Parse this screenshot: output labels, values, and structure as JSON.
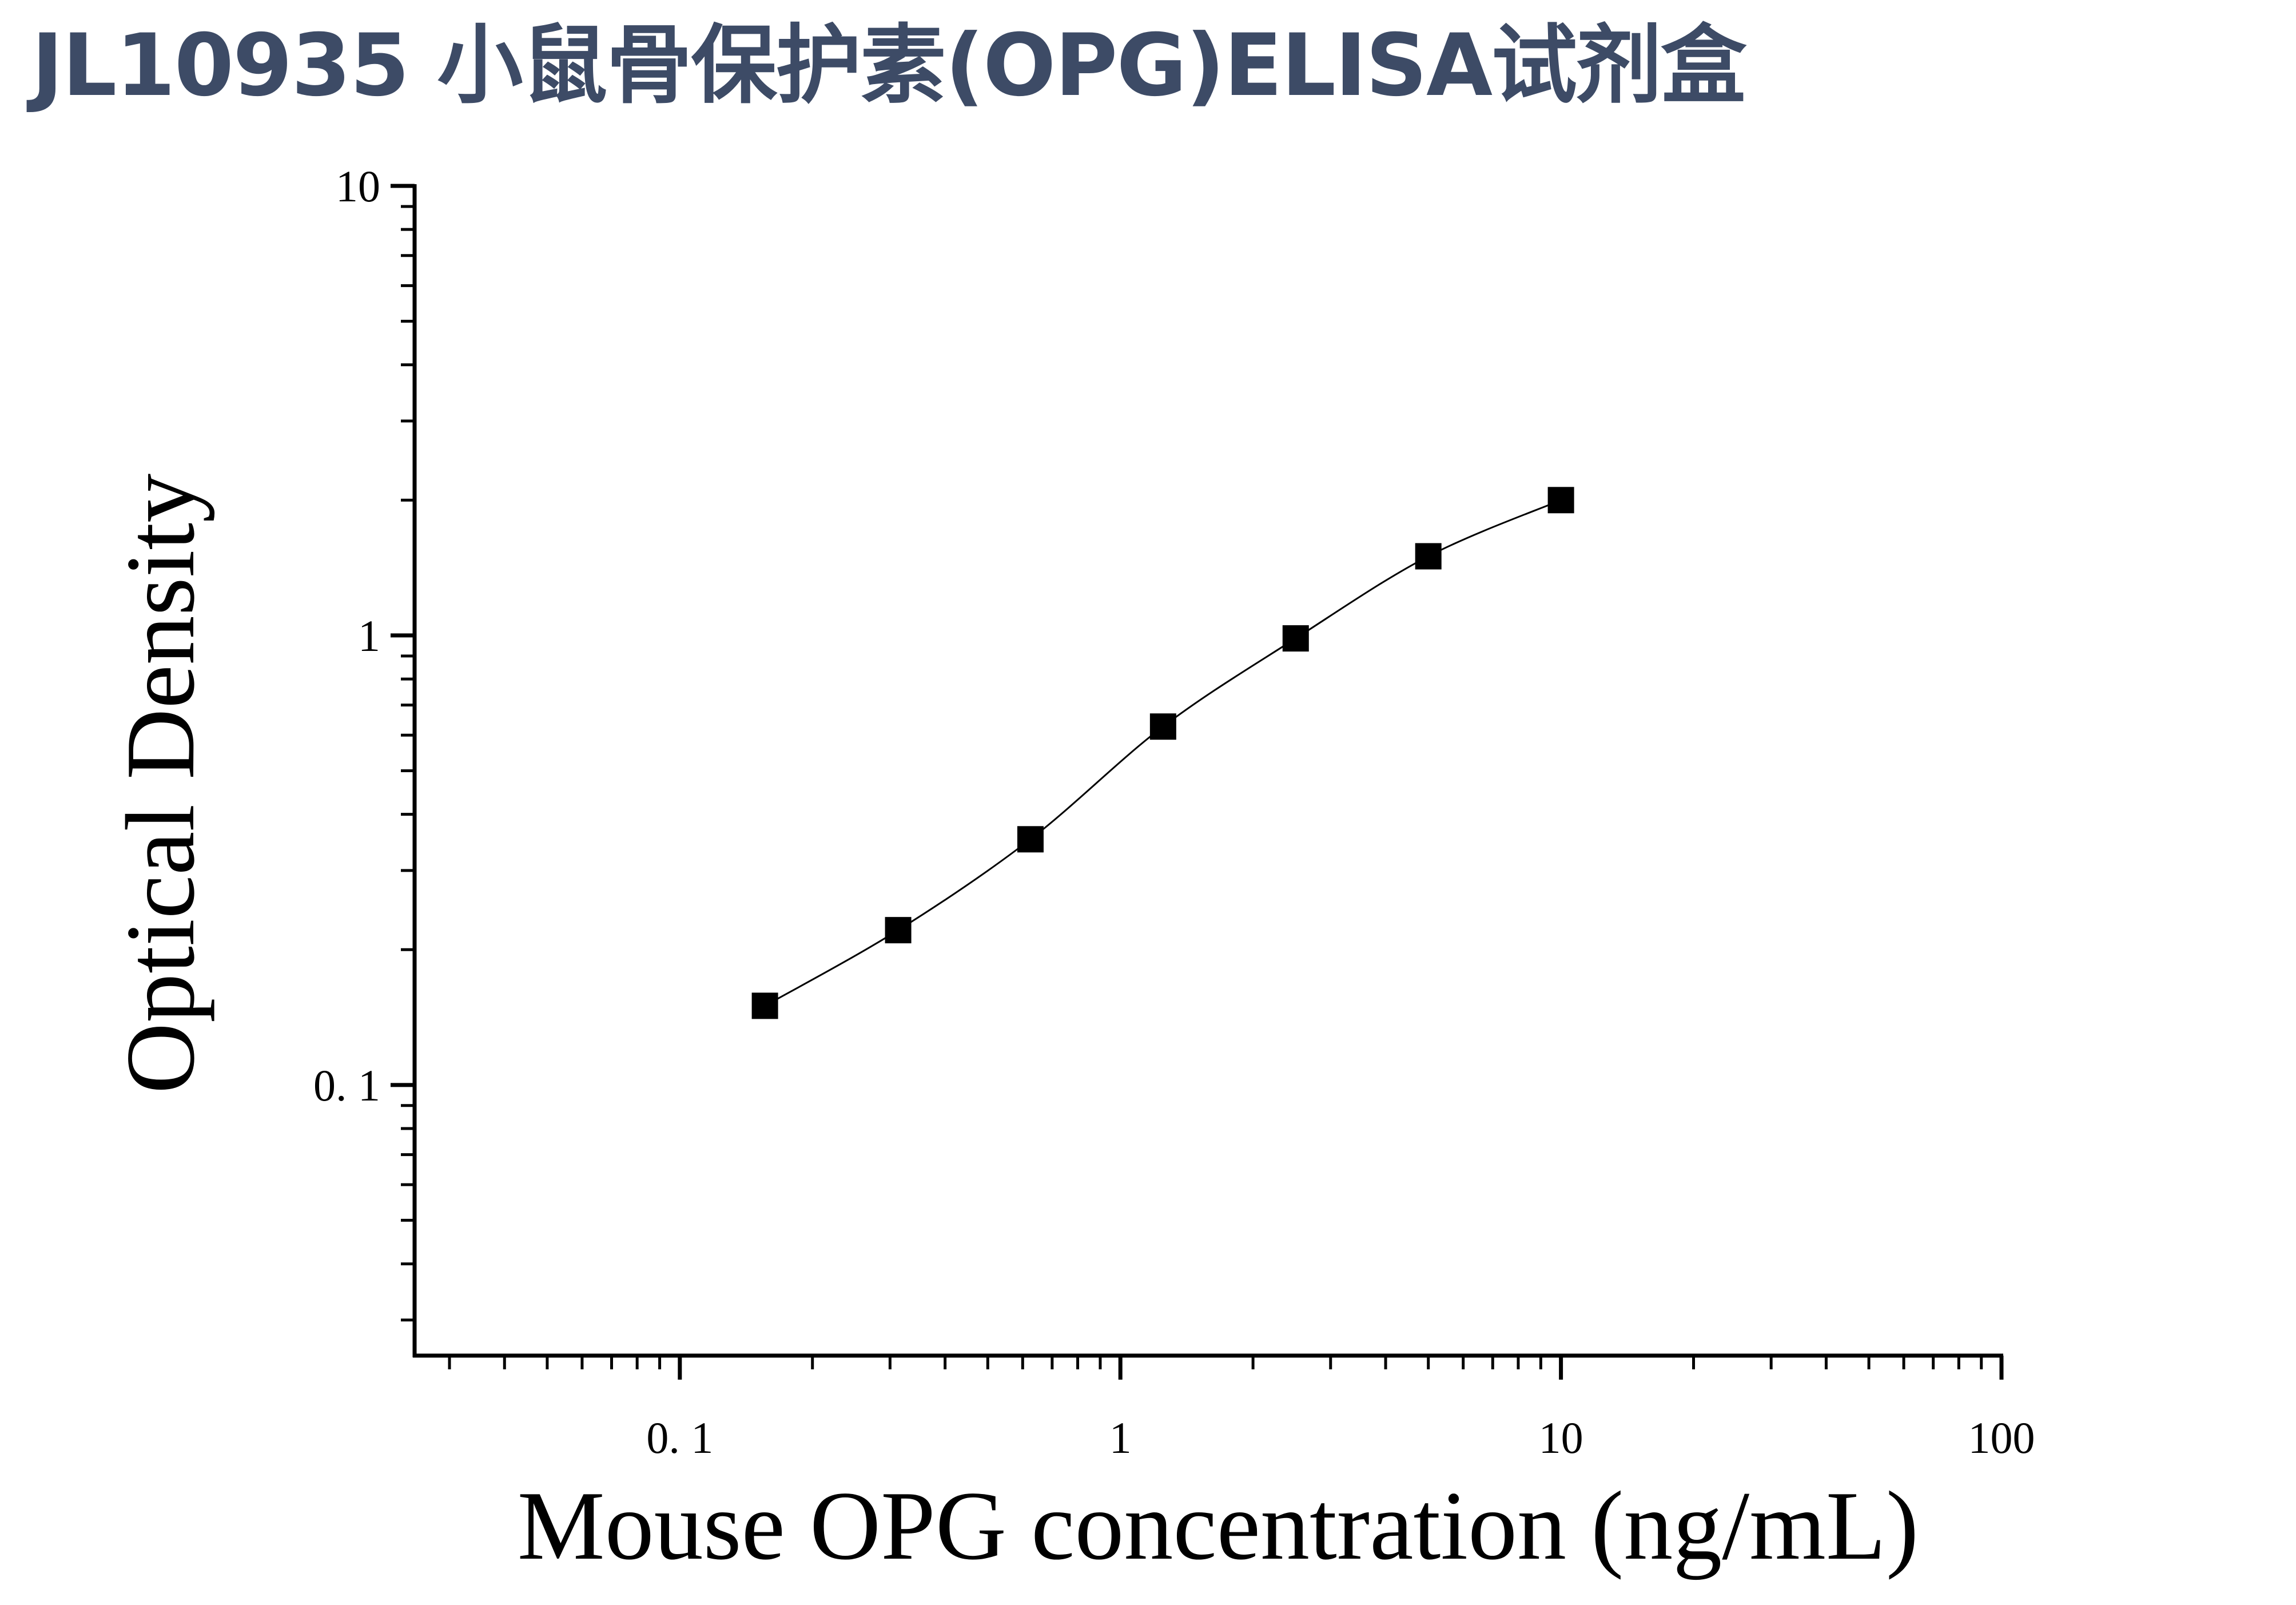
{
  "title": "JL10935 小鼠骨保护素(OPG)ELISA试剂盒",
  "chart_data": {
    "type": "scatter",
    "title": "JL10935 小鼠骨保护素(OPG)ELISA试剂盒",
    "xlabel": "Mouse OPG concentration (ng/mL)",
    "ylabel": "Optical Density",
    "x_scale": "log",
    "y_scale": "log",
    "xlim": [
      0.025,
      100
    ],
    "ylim": [
      0.025,
      10
    ],
    "x_ticks": [
      0.1,
      1,
      10,
      100
    ],
    "x_tick_labels": [
      "0. 1",
      "1",
      "10",
      "100"
    ],
    "y_ticks": [
      0.1,
      1,
      10
    ],
    "y_tick_labels": [
      "0. 1",
      "1",
      "10"
    ],
    "grid": false,
    "legend": "none",
    "colors": {
      "marker": "#000000",
      "curve": "#000000",
      "title": "#3d4b66"
    },
    "series": [
      {
        "marker": "square",
        "fit": "smooth curve",
        "x": [
          0.156,
          0.313,
          0.625,
          1.25,
          2.5,
          5,
          10
        ],
        "y": [
          0.15,
          0.221,
          0.352,
          0.627,
          0.985,
          1.5,
          2.0
        ]
      }
    ]
  }
}
